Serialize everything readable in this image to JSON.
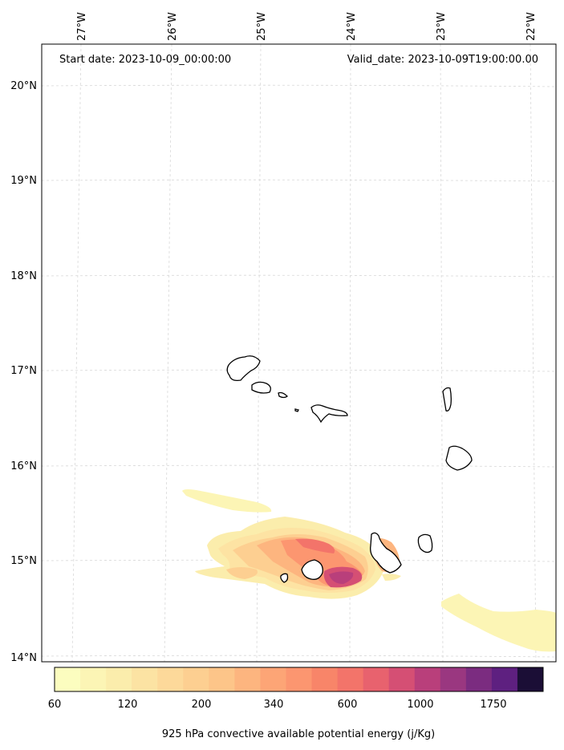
{
  "header": {
    "start_date": "Start date: 2023-10-09_00:00:00",
    "valid_date": "Valid_date: 2023-10-09T19:00:00.00"
  },
  "map": {
    "lon_labels": [
      "27°W",
      "26°W",
      "25°W",
      "24°W",
      "23°W",
      "22°W"
    ],
    "lat_labels": [
      "20°N",
      "19°N",
      "18°N",
      "17°N",
      "16°N",
      "15°N",
      "14°N"
    ],
    "gridlines": true
  },
  "colorbar": {
    "label": "925 hPa convective available potential energy (j/Kg)",
    "ticks": [
      "60",
      "120",
      "200",
      "340",
      "600",
      "1000",
      "1750"
    ],
    "colors": [
      "#fcfdbf",
      "#fcf5b5",
      "#fbedac",
      "#fce3a3",
      "#fdd99a",
      "#fdcf91",
      "#fdc589",
      "#fdb57f",
      "#fda576",
      "#fc9670",
      "#f88569",
      "#f3746a",
      "#e8626e",
      "#d54f74",
      "#b93f7b",
      "#9a3780",
      "#7b2c80",
      "#5e2080",
      "#1b0e36"
    ]
  },
  "features": {
    "ocean_color": "#ffffff",
    "land_outline": "#000000"
  }
}
